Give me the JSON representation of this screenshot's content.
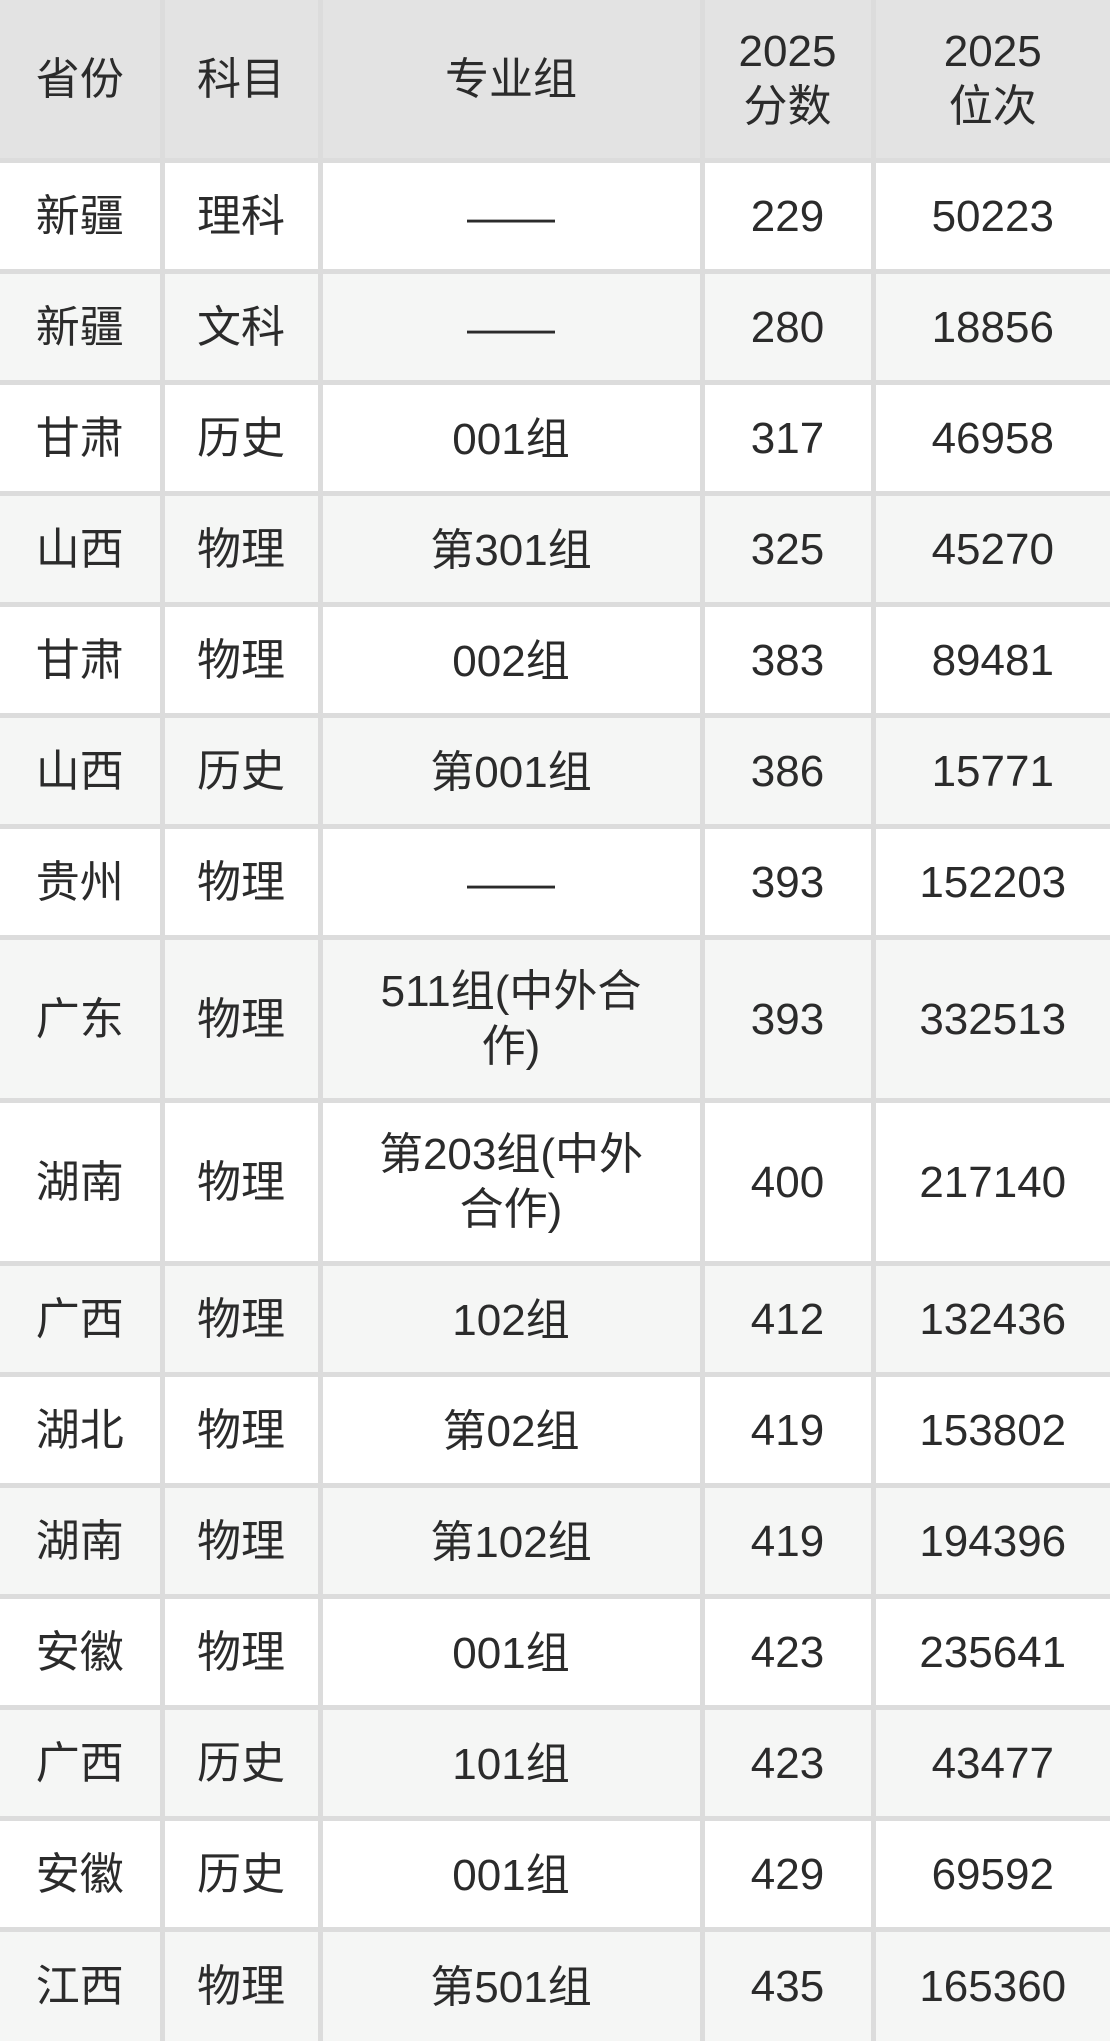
{
  "chart_data": {
    "type": "table",
    "columns": [
      "省份",
      "科目",
      "专业组",
      "2025\n分数",
      "2025\n位次"
    ],
    "rows": [
      [
        "新疆",
        "理科",
        "——",
        "229",
        "50223"
      ],
      [
        "新疆",
        "文科",
        "——",
        "280",
        "18856"
      ],
      [
        "甘肃",
        "历史",
        "001组",
        "317",
        "46958"
      ],
      [
        "山西",
        "物理",
        "第301组",
        "325",
        "45270"
      ],
      [
        "甘肃",
        "物理",
        "002组",
        "383",
        "89481"
      ],
      [
        "山西",
        "历史",
        "第001组",
        "386",
        "15771"
      ],
      [
        "贵州",
        "物理",
        "——",
        "393",
        "152203"
      ],
      [
        "广东",
        "物理",
        "511组(中外合作)",
        "393",
        "332513"
      ],
      [
        "湖南",
        "物理",
        "第203组(中外合作)",
        "400",
        "217140"
      ],
      [
        "广西",
        "物理",
        "102组",
        "412",
        "132436"
      ],
      [
        "湖北",
        "物理",
        "第02组",
        "419",
        "153802"
      ],
      [
        "湖南",
        "物理",
        "第102组",
        "419",
        "194396"
      ],
      [
        "安徽",
        "物理",
        "001组",
        "423",
        "235641"
      ],
      [
        "广西",
        "历史",
        "101组",
        "423",
        "43477"
      ],
      [
        "安徽",
        "历史",
        "001组",
        "429",
        "69592"
      ],
      [
        "江西",
        "物理",
        "第501组",
        "435",
        "165360"
      ]
    ],
    "legend_position": "none",
    "grid": true
  },
  "colors": {
    "header-bg": "#e3e3e3",
    "row-alt-bg": "#f5f6f5",
    "row-bg": "#ffffff",
    "border-color": "#dcdcdc",
    "text-color": "#2b2b2b"
  }
}
